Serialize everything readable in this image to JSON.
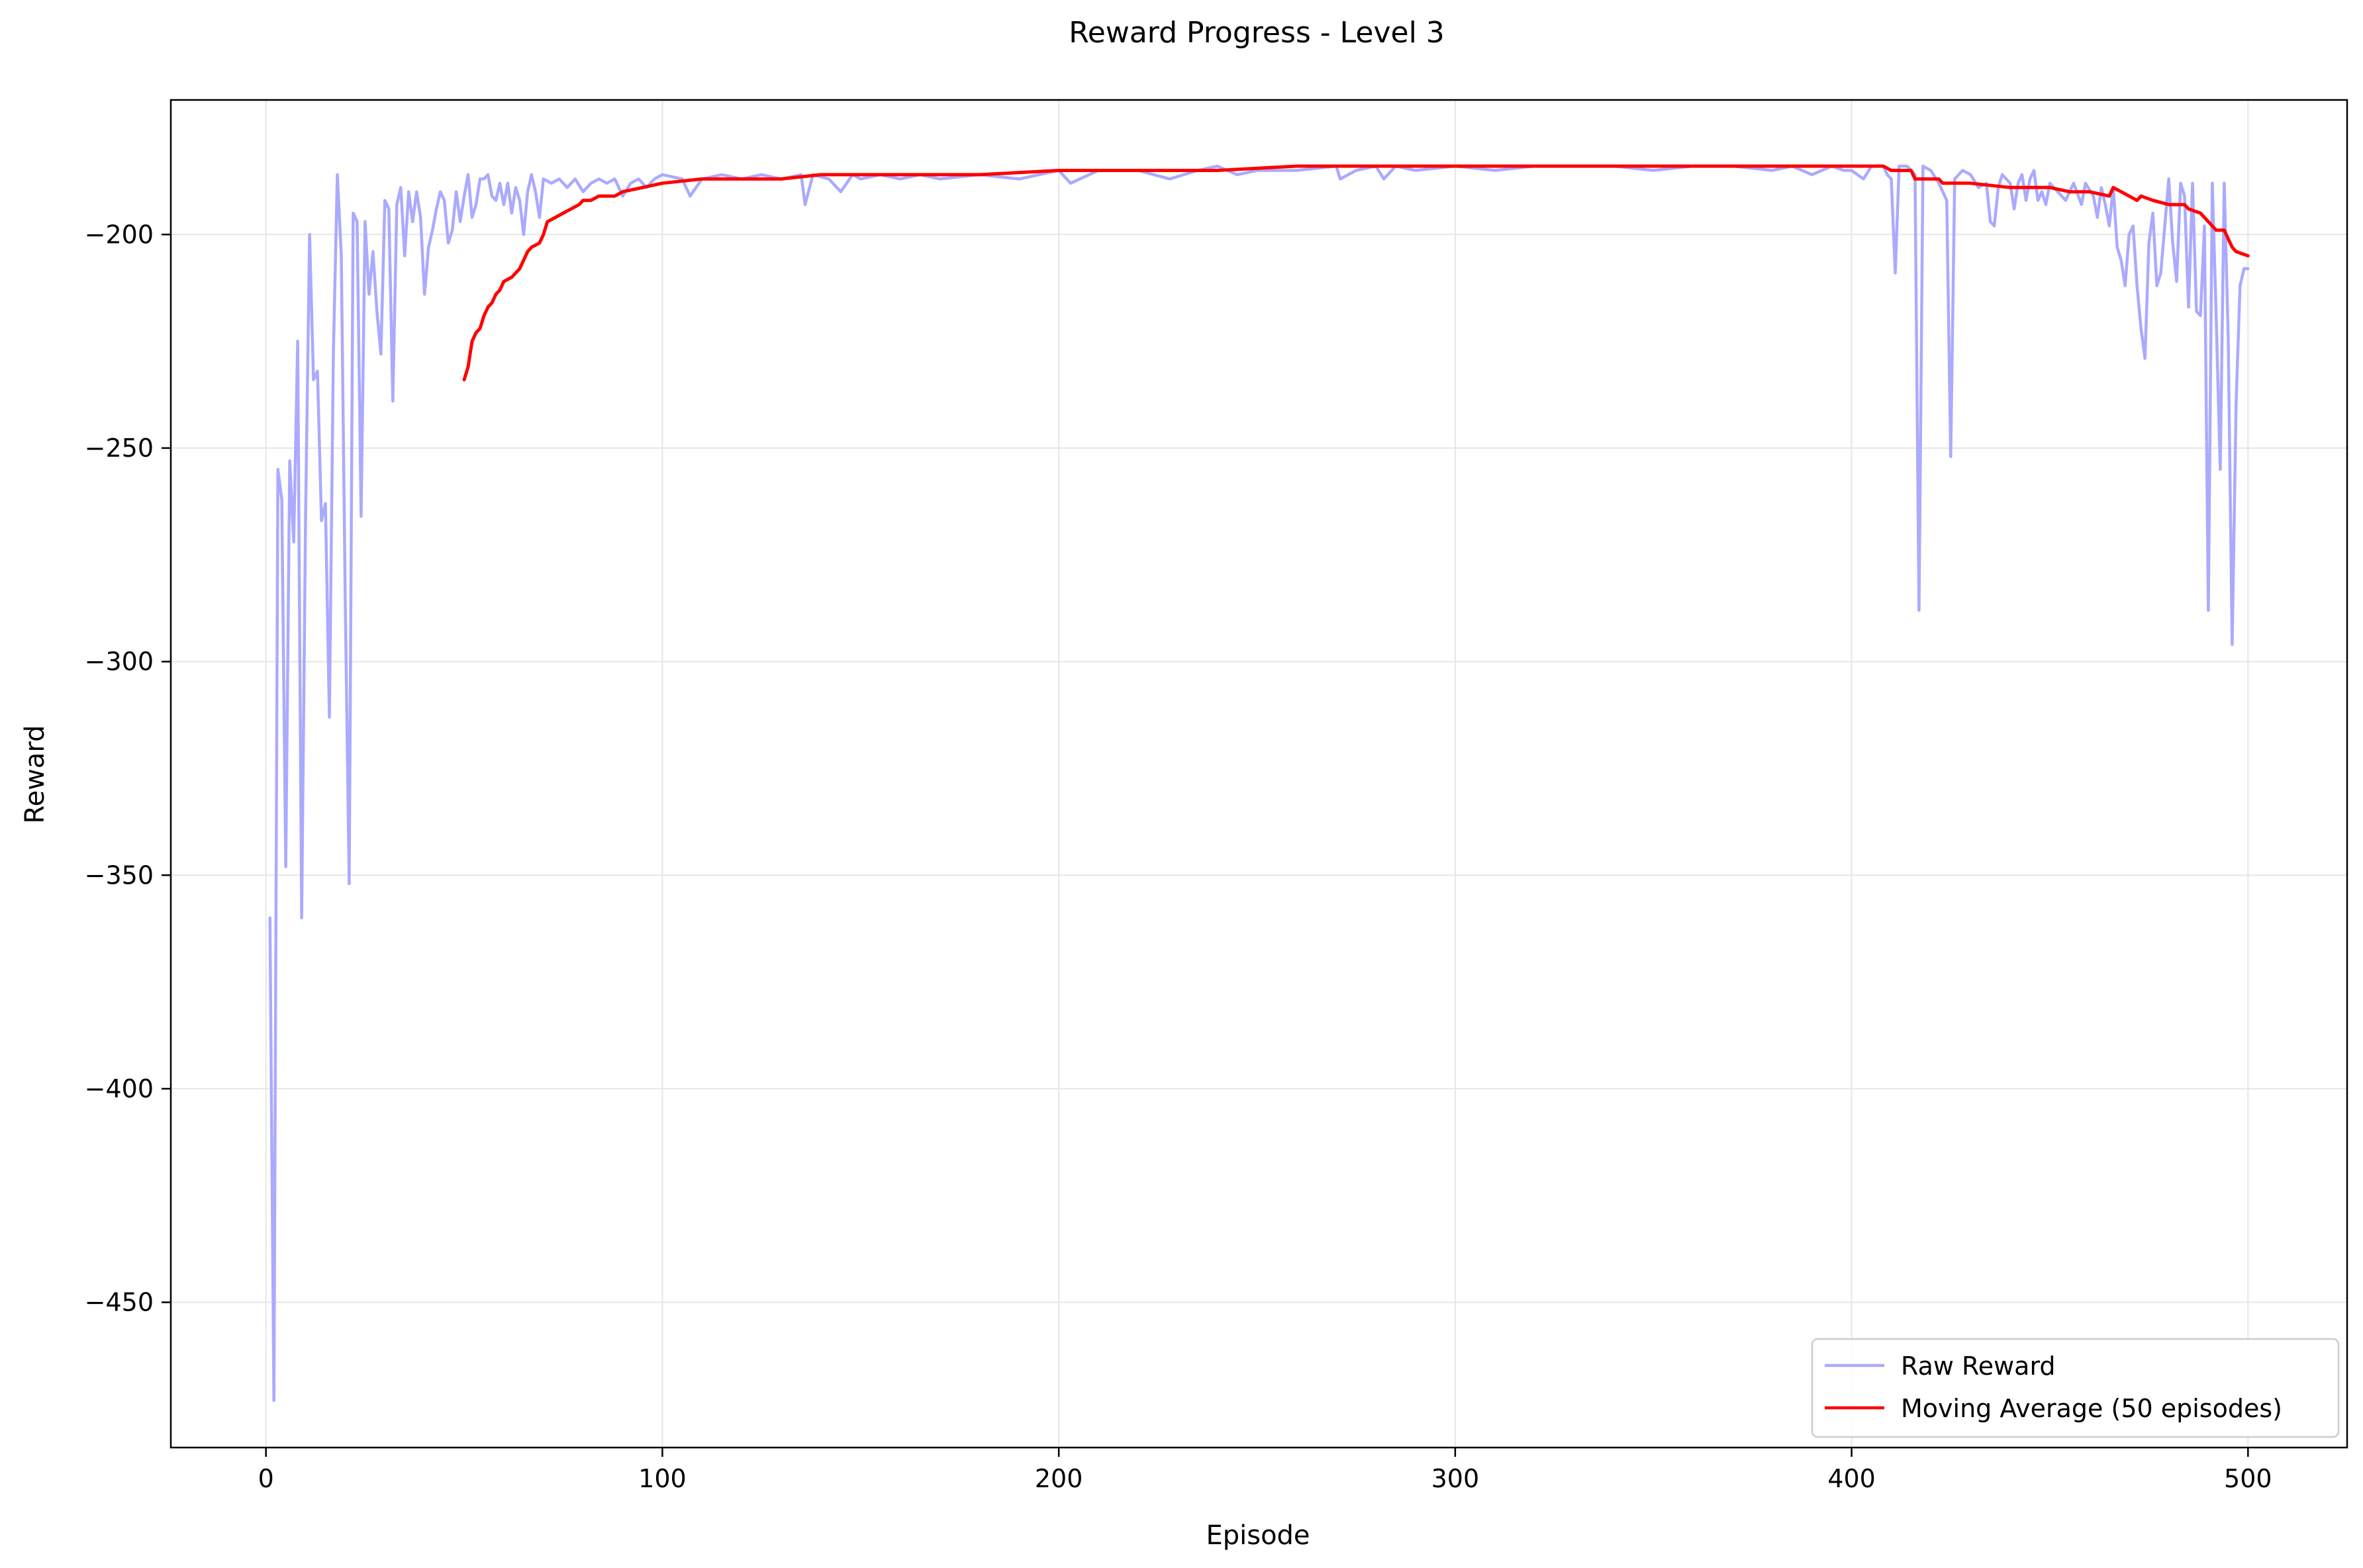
{
  "chart_data": {
    "type": "line",
    "title": "Reward Progress - Level 3",
    "xlabel": "Episode",
    "ylabel": "Reward",
    "xlim": [
      -24,
      525
    ],
    "ylim": [
      -484,
      -168.5
    ],
    "grid": true,
    "legend_position": "lower-right",
    "x_ticks": [
      0,
      100,
      200,
      300,
      400,
      500
    ],
    "y_ticks": [
      -450,
      -400,
      -350,
      -300,
      -250,
      -200
    ],
    "x_tick_labels": [
      "0",
      "100",
      "200",
      "300",
      "400",
      "500"
    ],
    "y_tick_labels": [
      "−450",
      "−400",
      "−350",
      "−300",
      "−250",
      "−200"
    ],
    "series": [
      {
        "name": "Raw Reward",
        "color": "#aaaaff",
        "points": [
          [
            1,
            -360
          ],
          [
            2,
            -473
          ],
          [
            3,
            -255
          ],
          [
            4,
            -262
          ],
          [
            5,
            -348
          ],
          [
            6,
            -253
          ],
          [
            7,
            -272
          ],
          [
            8,
            -225
          ],
          [
            9,
            -360
          ],
          [
            10,
            -265
          ],
          [
            11,
            -200
          ],
          [
            12,
            -234
          ],
          [
            13,
            -232
          ],
          [
            14,
            -267
          ],
          [
            15,
            -263
          ],
          [
            16,
            -313
          ],
          [
            17,
            -228
          ],
          [
            18,
            -186
          ],
          [
            19,
            -205
          ],
          [
            20,
            -285
          ],
          [
            21,
            -352
          ],
          [
            22,
            -195
          ],
          [
            23,
            -197
          ],
          [
            24,
            -266
          ],
          [
            25,
            -197
          ],
          [
            26,
            -214
          ],
          [
            27,
            -204
          ],
          [
            28,
            -218
          ],
          [
            29,
            -228
          ],
          [
            30,
            -192
          ],
          [
            31,
            -194
          ],
          [
            32,
            -239
          ],
          [
            33,
            -193
          ],
          [
            34,
            -189
          ],
          [
            35,
            -205
          ],
          [
            36,
            -190
          ],
          [
            37,
            -197
          ],
          [
            38,
            -190
          ],
          [
            39,
            -196
          ],
          [
            40,
            -214
          ],
          [
            41,
            -203
          ],
          [
            42,
            -199
          ],
          [
            43,
            -194
          ],
          [
            44,
            -190
          ],
          [
            45,
            -192
          ],
          [
            46,
            -202
          ],
          [
            47,
            -199
          ],
          [
            48,
            -190
          ],
          [
            49,
            -197
          ],
          [
            50,
            -191
          ],
          [
            51,
            -186
          ],
          [
            52,
            -196
          ],
          [
            53,
            -193
          ],
          [
            54,
            -187
          ],
          [
            55,
            -187
          ],
          [
            56,
            -186
          ],
          [
            57,
            -191
          ],
          [
            58,
            -192
          ],
          [
            59,
            -188
          ],
          [
            60,
            -193
          ],
          [
            61,
            -188
          ],
          [
            62,
            -195
          ],
          [
            63,
            -189
          ],
          [
            64,
            -192
          ],
          [
            65,
            -200
          ],
          [
            66,
            -190
          ],
          [
            67,
            -186
          ],
          [
            68,
            -190
          ],
          [
            69,
            -196
          ],
          [
            70,
            -187
          ],
          [
            72,
            -188
          ],
          [
            74,
            -187
          ],
          [
            76,
            -189
          ],
          [
            78,
            -187
          ],
          [
            80,
            -190
          ],
          [
            82,
            -188
          ],
          [
            84,
            -187
          ],
          [
            86,
            -188
          ],
          [
            88,
            -187
          ],
          [
            90,
            -191
          ],
          [
            92,
            -188
          ],
          [
            94,
            -187
          ],
          [
            96,
            -189
          ],
          [
            98,
            -187
          ],
          [
            100,
            -186
          ],
          [
            105,
            -187
          ],
          [
            107,
            -191
          ],
          [
            110,
            -187
          ],
          [
            115,
            -186
          ],
          [
            120,
            -187
          ],
          [
            125,
            -186
          ],
          [
            130,
            -187
          ],
          [
            135,
            -186
          ],
          [
            136,
            -193
          ],
          [
            138,
            -186
          ],
          [
            142,
            -187
          ],
          [
            145,
            -190
          ],
          [
            148,
            -186
          ],
          [
            150,
            -187
          ],
          [
            155,
            -186
          ],
          [
            160,
            -187
          ],
          [
            165,
            -186
          ],
          [
            170,
            -187
          ],
          [
            180,
            -186
          ],
          [
            190,
            -187
          ],
          [
            200,
            -185
          ],
          [
            203,
            -188
          ],
          [
            210,
            -185
          ],
          [
            220,
            -185
          ],
          [
            228,
            -187
          ],
          [
            235,
            -185
          ],
          [
            240,
            -184
          ],
          [
            245,
            -186
          ],
          [
            250,
            -185
          ],
          [
            260,
            -185
          ],
          [
            270,
            -184
          ],
          [
            271,
            -187
          ],
          [
            275,
            -185
          ],
          [
            280,
            -184
          ],
          [
            282,
            -187
          ],
          [
            285,
            -184
          ],
          [
            290,
            -185
          ],
          [
            300,
            -184
          ],
          [
            310,
            -185
          ],
          [
            320,
            -184
          ],
          [
            330,
            -184
          ],
          [
            340,
            -184
          ],
          [
            350,
            -185
          ],
          [
            360,
            -184
          ],
          [
            370,
            -184
          ],
          [
            380,
            -185
          ],
          [
            385,
            -184
          ],
          [
            390,
            -186
          ],
          [
            395,
            -184
          ],
          [
            398,
            -185
          ],
          [
            400,
            -185
          ],
          [
            403,
            -187
          ],
          [
            405,
            -184
          ],
          [
            408,
            -184
          ],
          [
            409,
            -186
          ],
          [
            410,
            -187
          ],
          [
            411,
            -209
          ],
          [
            412,
            -184
          ],
          [
            414,
            -184
          ],
          [
            416,
            -186
          ],
          [
            417,
            -288
          ],
          [
            418,
            -184
          ],
          [
            420,
            -185
          ],
          [
            422,
            -188
          ],
          [
            424,
            -192
          ],
          [
            425,
            -252
          ],
          [
            426,
            -187
          ],
          [
            428,
            -185
          ],
          [
            430,
            -186
          ],
          [
            432,
            -189
          ],
          [
            434,
            -188
          ],
          [
            435,
            -197
          ],
          [
            436,
            -198
          ],
          [
            437,
            -189
          ],
          [
            438,
            -186
          ],
          [
            440,
            -188
          ],
          [
            441,
            -194
          ],
          [
            442,
            -188
          ],
          [
            443,
            -186
          ],
          [
            444,
            -192
          ],
          [
            445,
            -187
          ],
          [
            446,
            -185
          ],
          [
            447,
            -192
          ],
          [
            448,
            -190
          ],
          [
            449,
            -193
          ],
          [
            450,
            -188
          ],
          [
            452,
            -190
          ],
          [
            454,
            -192
          ],
          [
            456,
            -188
          ],
          [
            458,
            -193
          ],
          [
            459,
            -188
          ],
          [
            461,
            -191
          ],
          [
            462,
            -196
          ],
          [
            463,
            -189
          ],
          [
            464,
            -193
          ],
          [
            465,
            -198
          ],
          [
            466,
            -189
          ],
          [
            467,
            -203
          ],
          [
            468,
            -206
          ],
          [
            469,
            -212
          ],
          [
            470,
            -200
          ],
          [
            471,
            -198
          ],
          [
            472,
            -212
          ],
          [
            473,
            -222
          ],
          [
            474,
            -229
          ],
          [
            475,
            -202
          ],
          [
            476,
            -195
          ],
          [
            477,
            -212
          ],
          [
            478,
            -209
          ],
          [
            479,
            -198
          ],
          [
            480,
            -187
          ],
          [
            481,
            -202
          ],
          [
            482,
            -211
          ],
          [
            483,
            -188
          ],
          [
            484,
            -191
          ],
          [
            485,
            -217
          ],
          [
            486,
            -188
          ],
          [
            487,
            -218
          ],
          [
            488,
            -219
          ],
          [
            489,
            -198
          ],
          [
            490,
            -288
          ],
          [
            491,
            -188
          ],
          [
            492,
            -220
          ],
          [
            493,
            -255
          ],
          [
            494,
            -188
          ],
          [
            495,
            -224
          ],
          [
            496,
            -296
          ],
          [
            497,
            -239
          ],
          [
            498,
            -212
          ],
          [
            499,
            -208
          ],
          [
            500,
            -208
          ]
        ]
      },
      {
        "name": "Moving Average (50 episodes)",
        "color": "#ff0000",
        "points": [
          [
            50,
            -234
          ],
          [
            51,
            -231
          ],
          [
            52,
            -225
          ],
          [
            53,
            -223
          ],
          [
            54,
            -222
          ],
          [
            55,
            -219
          ],
          [
            56,
            -217
          ],
          [
            57,
            -216
          ],
          [
            58,
            -214
          ],
          [
            59,
            -213
          ],
          [
            60,
            -211
          ],
          [
            62,
            -210
          ],
          [
            64,
            -208
          ],
          [
            66,
            -204
          ],
          [
            67,
            -203
          ],
          [
            69,
            -202
          ],
          [
            70,
            -200
          ],
          [
            71,
            -197
          ],
          [
            73,
            -196
          ],
          [
            75,
            -195
          ],
          [
            77,
            -194
          ],
          [
            79,
            -193
          ],
          [
            80,
            -192
          ],
          [
            82,
            -192
          ],
          [
            84,
            -191
          ],
          [
            88,
            -191
          ],
          [
            90,
            -190
          ],
          [
            95,
            -189
          ],
          [
            100,
            -188
          ],
          [
            110,
            -187
          ],
          [
            120,
            -187
          ],
          [
            130,
            -187
          ],
          [
            140,
            -186
          ],
          [
            150,
            -186
          ],
          [
            160,
            -186
          ],
          [
            170,
            -186
          ],
          [
            180,
            -186
          ],
          [
            200,
            -185
          ],
          [
            220,
            -185
          ],
          [
            240,
            -185
          ],
          [
            260,
            -184
          ],
          [
            280,
            -184
          ],
          [
            300,
            -184
          ],
          [
            320,
            -184
          ],
          [
            340,
            -184
          ],
          [
            360,
            -184
          ],
          [
            380,
            -184
          ],
          [
            390,
            -184
          ],
          [
            400,
            -184
          ],
          [
            408,
            -184
          ],
          [
            410,
            -185
          ],
          [
            415,
            -185
          ],
          [
            416,
            -187
          ],
          [
            422,
            -187
          ],
          [
            423,
            -188
          ],
          [
            430,
            -188
          ],
          [
            440,
            -189
          ],
          [
            450,
            -189
          ],
          [
            455,
            -190
          ],
          [
            460,
            -190
          ],
          [
            465,
            -191
          ],
          [
            466,
            -189
          ],
          [
            468,
            -190
          ],
          [
            470,
            -191
          ],
          [
            472,
            -192
          ],
          [
            473,
            -191
          ],
          [
            476,
            -192
          ],
          [
            480,
            -193
          ],
          [
            484,
            -193
          ],
          [
            485,
            -194
          ],
          [
            488,
            -195
          ],
          [
            489,
            -196
          ],
          [
            490,
            -197
          ],
          [
            491,
            -198
          ],
          [
            492,
            -199
          ],
          [
            494,
            -199
          ],
          [
            495,
            -201
          ],
          [
            496,
            -203
          ],
          [
            497,
            -204
          ],
          [
            500,
            -205
          ]
        ]
      }
    ]
  }
}
